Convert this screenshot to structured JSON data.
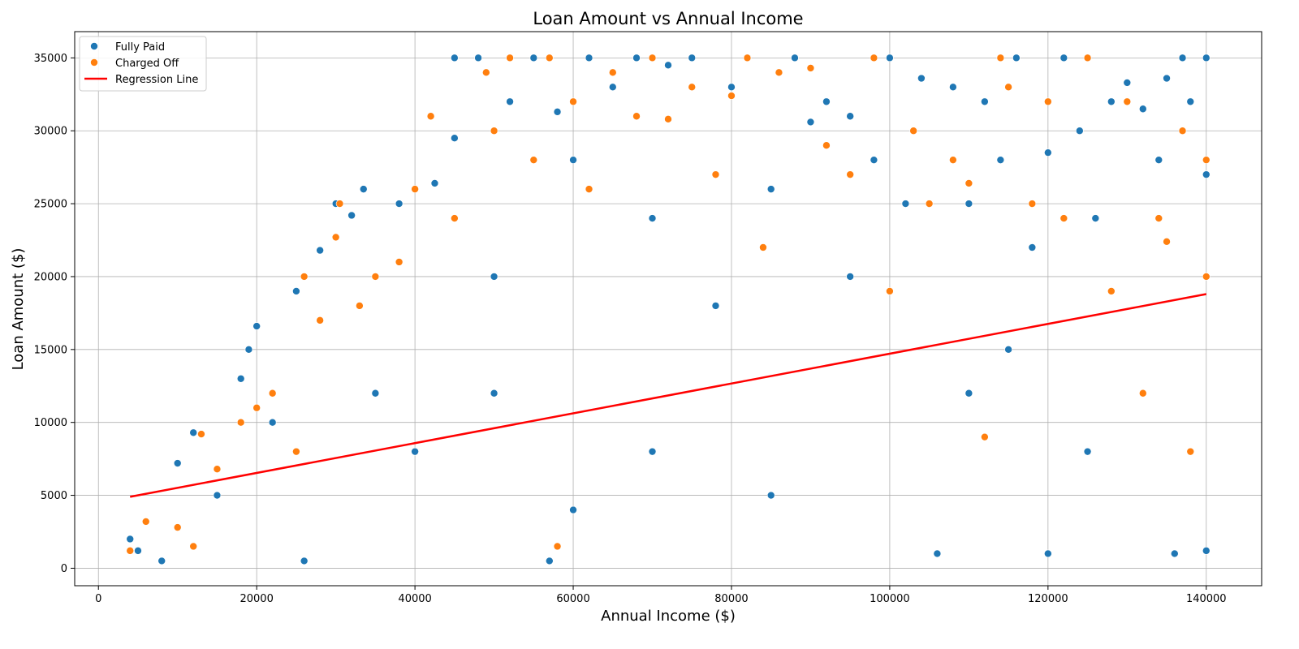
{
  "chart_data": {
    "type": "scatter",
    "title": "Loan Amount vs Annual Income",
    "xlabel": "Annual Income ($)",
    "ylabel": "Loan Amount ($)",
    "xlim": [
      -3000,
      147000
    ],
    "ylim": [
      -1200,
      36800
    ],
    "xticks": [
      0,
      20000,
      40000,
      60000,
      80000,
      100000,
      120000,
      140000
    ],
    "yticks": [
      0,
      5000,
      10000,
      15000,
      20000,
      25000,
      30000,
      35000
    ],
    "grid": true,
    "legend_position": "top-left",
    "legend": [
      "Fully Paid",
      "Charged Off",
      "Regression Line"
    ],
    "colors": {
      "Fully Paid": "#1f77b4",
      "Charged Off": "#ff7f0e",
      "Regression Line": "#ff0000"
    },
    "series": [
      {
        "name": "Fully Paid",
        "points": [
          [
            4000,
            2000
          ],
          [
            5000,
            1200
          ],
          [
            8000,
            500
          ],
          [
            10000,
            7200
          ],
          [
            12000,
            9300
          ],
          [
            15000,
            5000
          ],
          [
            18000,
            13000
          ],
          [
            19000,
            15000
          ],
          [
            20000,
            16600
          ],
          [
            22000,
            10000
          ],
          [
            25000,
            19000
          ],
          [
            26000,
            500
          ],
          [
            28000,
            21800
          ],
          [
            30000,
            25000
          ],
          [
            32000,
            24200
          ],
          [
            33500,
            26000
          ],
          [
            35000,
            12000
          ],
          [
            38000,
            25000
          ],
          [
            40000,
            8000
          ],
          [
            42500,
            26400
          ],
          [
            45000,
            29500
          ],
          [
            45000,
            35000
          ],
          [
            48000,
            35000
          ],
          [
            50000,
            20000
          ],
          [
            52000,
            32000
          ],
          [
            55000,
            35000
          ],
          [
            57000,
            500
          ],
          [
            58000,
            31300
          ],
          [
            60000,
            28000
          ],
          [
            62000,
            35000
          ],
          [
            65000,
            33000
          ],
          [
            68000,
            35000
          ],
          [
            70000,
            24000
          ],
          [
            72000,
            34500
          ],
          [
            75000,
            35000
          ],
          [
            78000,
            18000
          ],
          [
            80000,
            33000
          ],
          [
            82000,
            35000
          ],
          [
            85000,
            26000
          ],
          [
            88000,
            35000
          ],
          [
            90000,
            30600
          ],
          [
            92000,
            32000
          ],
          [
            95000,
            31000
          ],
          [
            98000,
            28000
          ],
          [
            100000,
            35000
          ],
          [
            102000,
            25000
          ],
          [
            104000,
            33600
          ],
          [
            106000,
            1000
          ],
          [
            108000,
            33000
          ],
          [
            110000,
            25000
          ],
          [
            112000,
            32000
          ],
          [
            114000,
            28000
          ],
          [
            116000,
            35000
          ],
          [
            118000,
            22000
          ],
          [
            120000,
            28500
          ],
          [
            120000,
            1000
          ],
          [
            122000,
            35000
          ],
          [
            124000,
            30000
          ],
          [
            126000,
            24000
          ],
          [
            128000,
            32000
          ],
          [
            130000,
            33300
          ],
          [
            132000,
            31500
          ],
          [
            134000,
            28000
          ],
          [
            135000,
            33600
          ],
          [
            136000,
            1000
          ],
          [
            137000,
            35000
          ],
          [
            138000,
            32000
          ],
          [
            140000,
            35000
          ],
          [
            140000,
            27000
          ],
          [
            140000,
            1200
          ],
          [
            70000,
            8000
          ],
          [
            85000,
            5000
          ],
          [
            110000,
            12000
          ],
          [
            125000,
            8000
          ],
          [
            60000,
            4000
          ],
          [
            95000,
            20000
          ],
          [
            115000,
            15000
          ],
          [
            50000,
            12000
          ]
        ]
      },
      {
        "name": "Charged Off",
        "points": [
          [
            4000,
            1200
          ],
          [
            6000,
            3200
          ],
          [
            10000,
            2800
          ],
          [
            12000,
            1500
          ],
          [
            13000,
            9200
          ],
          [
            15000,
            6800
          ],
          [
            18000,
            10000
          ],
          [
            20000,
            11000
          ],
          [
            22000,
            12000
          ],
          [
            25000,
            8000
          ],
          [
            26000,
            20000
          ],
          [
            28000,
            17000
          ],
          [
            30000,
            22700
          ],
          [
            30500,
            25000
          ],
          [
            33000,
            18000
          ],
          [
            35000,
            20000
          ],
          [
            38000,
            21000
          ],
          [
            40000,
            26000
          ],
          [
            42000,
            31000
          ],
          [
            45000,
            24000
          ],
          [
            49000,
            34000
          ],
          [
            50000,
            30000
          ],
          [
            52000,
            35000
          ],
          [
            55000,
            28000
          ],
          [
            57000,
            35000
          ],
          [
            58000,
            1500
          ],
          [
            60000,
            32000
          ],
          [
            62000,
            26000
          ],
          [
            65000,
            34000
          ],
          [
            68000,
            31000
          ],
          [
            70000,
            35000
          ],
          [
            72000,
            30800
          ],
          [
            75000,
            33000
          ],
          [
            78000,
            27000
          ],
          [
            80000,
            32400
          ],
          [
            82000,
            35000
          ],
          [
            84000,
            22000
          ],
          [
            86000,
            34000
          ],
          [
            90000,
            34300
          ],
          [
            92000,
            29000
          ],
          [
            95000,
            27000
          ],
          [
            98000,
            35000
          ],
          [
            100000,
            19000
          ],
          [
            103000,
            30000
          ],
          [
            105000,
            25000
          ],
          [
            108000,
            28000
          ],
          [
            110000,
            26400
          ],
          [
            112000,
            9000
          ],
          [
            114000,
            35000
          ],
          [
            115000,
            33000
          ],
          [
            118000,
            25000
          ],
          [
            120000,
            32000
          ],
          [
            122000,
            24000
          ],
          [
            125000,
            35000
          ],
          [
            128000,
            19000
          ],
          [
            130000,
            32000
          ],
          [
            132000,
            12000
          ],
          [
            134000,
            24000
          ],
          [
            135000,
            22400
          ],
          [
            137000,
            30000
          ],
          [
            138000,
            8000
          ],
          [
            140000,
            28000
          ],
          [
            140000,
            20000
          ]
        ]
      }
    ],
    "regression_line": {
      "x": [
        4000,
        140000
      ],
      "y": [
        4900,
        18800
      ]
    }
  }
}
